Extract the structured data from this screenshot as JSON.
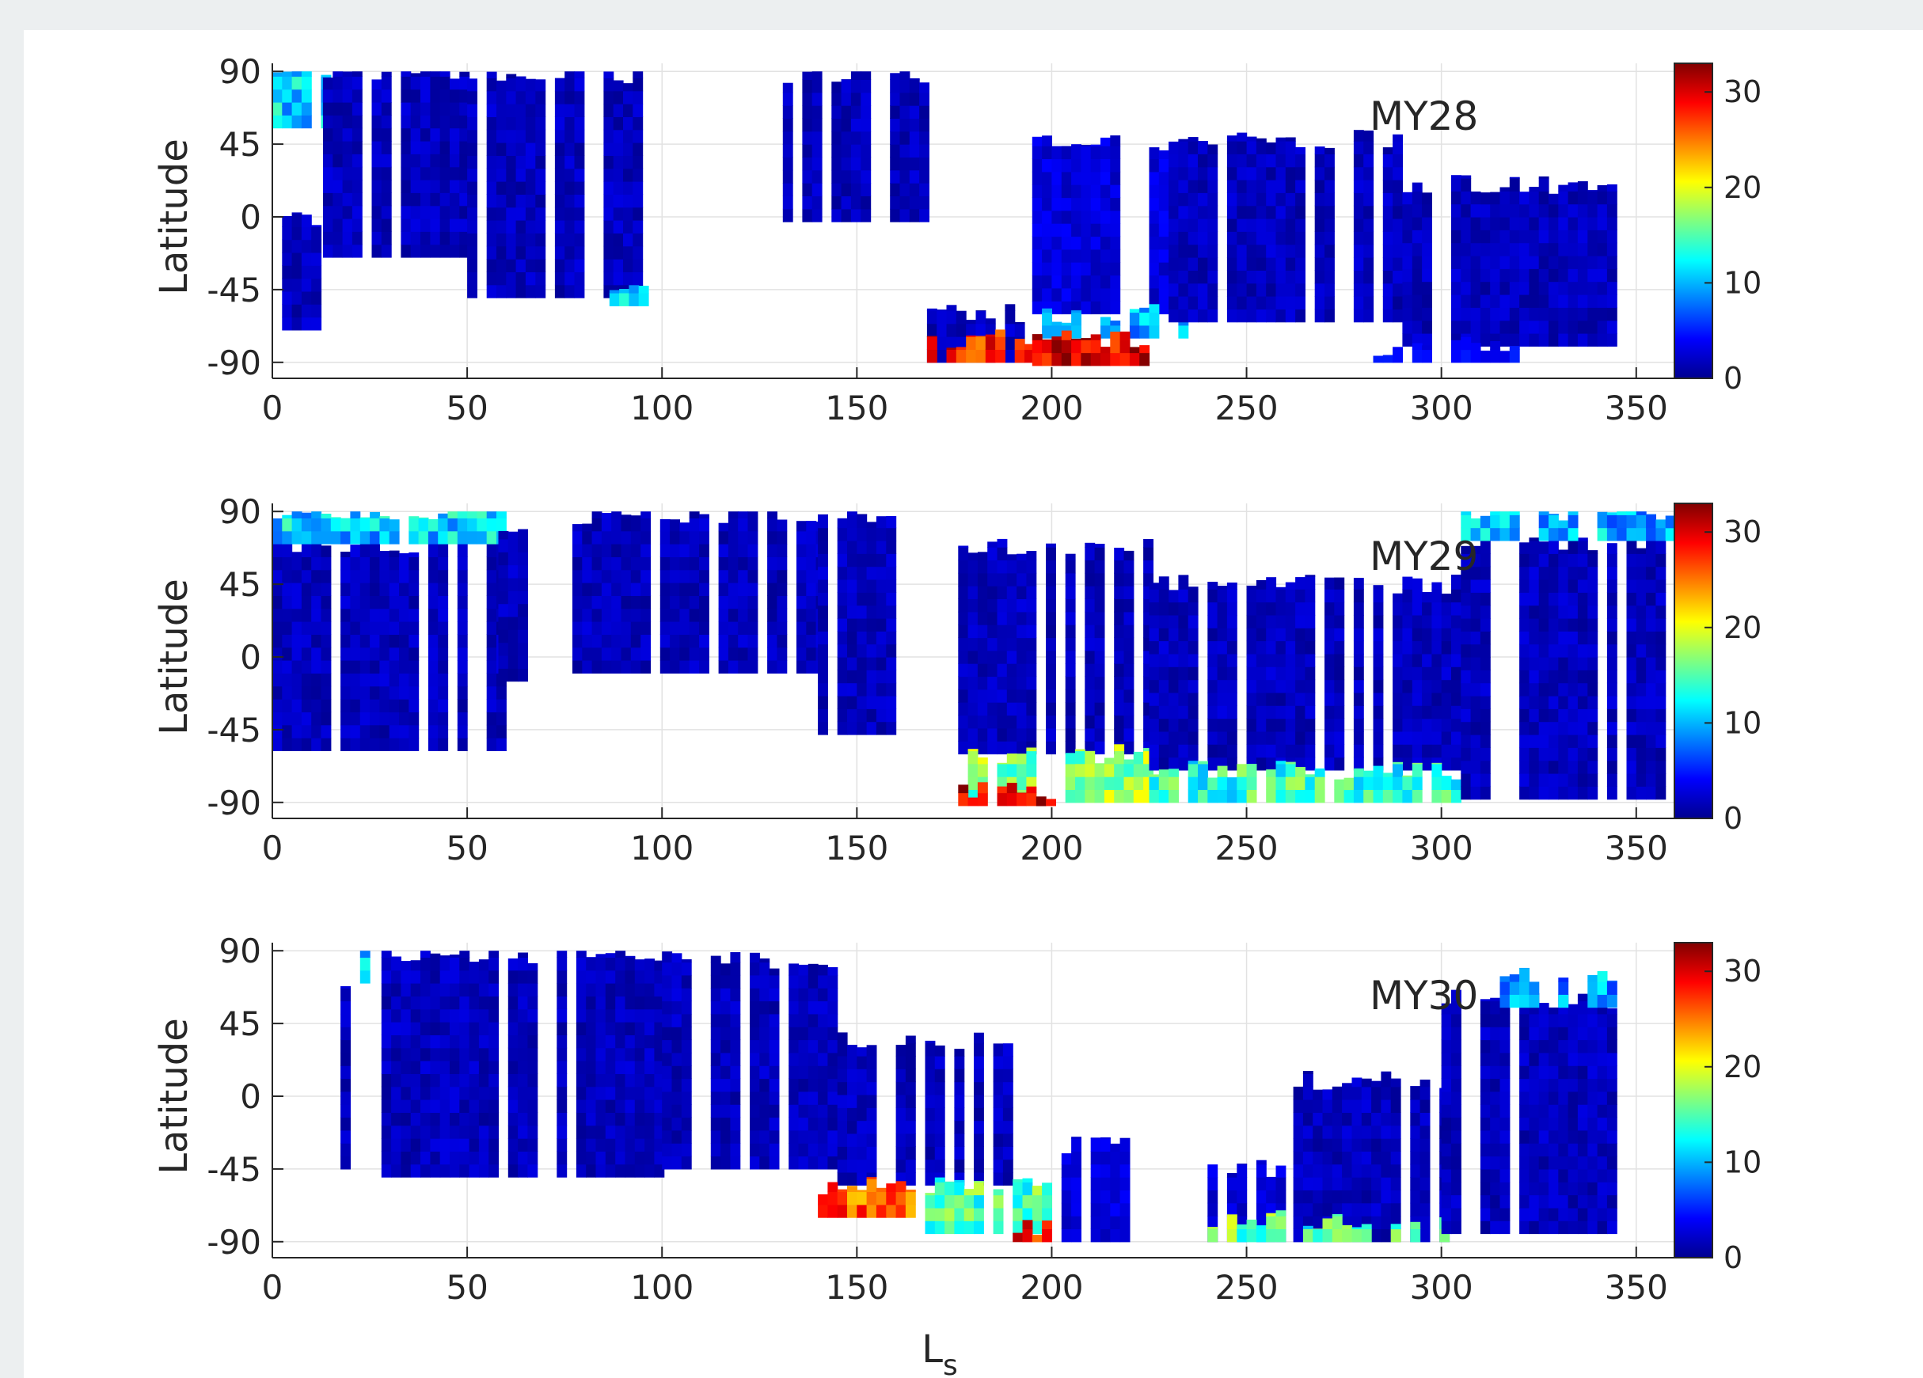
{
  "chart_data": [
    {
      "type": "heatmap",
      "panel_label": "MY28",
      "ylabel": "Latitude",
      "xlabel": "",
      "xlim": [
        0,
        360
      ],
      "ylim": [
        -95,
        95
      ],
      "xticks": [
        "0",
        "50",
        "100",
        "150",
        "200",
        "250",
        "300",
        "350"
      ],
      "yticks": [
        "90",
        "45",
        "0",
        "-45",
        "-90"
      ],
      "xtick_values": [
        0,
        50,
        100,
        150,
        200,
        250,
        300,
        350
      ],
      "ytick_values": [
        90,
        45,
        0,
        -45,
        -90
      ],
      "colorbar": {
        "range": [
          0,
          33
        ],
        "ticks": [
          "0",
          "10",
          "20",
          "30"
        ],
        "tick_values": [
          0,
          10,
          20,
          30
        ],
        "colormap": "jet"
      },
      "grid": true,
      "coverage": [
        {
          "ls": [
            0,
            13
          ],
          "lat": [
            -70,
            0
          ],
          "v": 2
        },
        {
          "ls": [
            0,
            13
          ],
          "lat": [
            55,
            88
          ],
          "v": 11
        },
        {
          "ls": [
            13,
            50
          ],
          "lat": [
            -25,
            88
          ],
          "v": 2
        },
        {
          "ls": [
            50,
            95
          ],
          "lat": [
            -50,
            88
          ],
          "v": 2
        },
        {
          "ls": [
            84,
            95
          ],
          "lat": [
            -55,
            -45
          ],
          "v": 12
        },
        {
          "ls": [
            131,
            168
          ],
          "lat": [
            -3,
            88
          ],
          "v": 2
        },
        {
          "ls": [
            168,
            195
          ],
          "lat": [
            -90,
            -60
          ],
          "v": 2
        },
        {
          "ls": [
            168,
            195
          ],
          "lat": [
            -90,
            -75
          ],
          "v": 28
        },
        {
          "ls": [
            195,
            230
          ],
          "lat": [
            -60,
            45
          ],
          "v": 3
        },
        {
          "ls": [
            195,
            235
          ],
          "lat": [
            -75,
            -60
          ],
          "v": 10
        },
        {
          "ls": [
            195,
            225
          ],
          "lat": [
            -92,
            -75
          ],
          "v": 30
        },
        {
          "ls": [
            230,
            290
          ],
          "lat": [
            -65,
            48
          ],
          "v": 2
        },
        {
          "ls": [
            290,
            345
          ],
          "lat": [
            -80,
            20
          ],
          "v": 2
        },
        {
          "ls": [
            280,
            320
          ],
          "lat": [
            -90,
            -80
          ],
          "v": 4
        }
      ]
    },
    {
      "type": "heatmap",
      "panel_label": "MY29",
      "ylabel": "Latitude",
      "xlabel": "",
      "xlim": [
        0,
        360
      ],
      "ylim": [
        -95,
        95
      ],
      "xticks": [
        "0",
        "50",
        "100",
        "150",
        "200",
        "250",
        "300",
        "350"
      ],
      "yticks": [
        "90",
        "45",
        "0",
        "-45",
        "-90"
      ],
      "xtick_values": [
        0,
        50,
        100,
        150,
        200,
        250,
        300,
        350
      ],
      "ytick_values": [
        90,
        45,
        0,
        -45,
        -90
      ],
      "colorbar": {
        "range": [
          0,
          33
        ],
        "ticks": [
          "0",
          "10",
          "20",
          "30"
        ],
        "tick_values": [
          0,
          10,
          20,
          30
        ],
        "colormap": "jet"
      },
      "grid": true,
      "coverage": [
        {
          "ls": [
            0,
            58
          ],
          "lat": [
            -58,
            70
          ],
          "v": 2
        },
        {
          "ls": [
            0,
            58
          ],
          "lat": [
            70,
            90
          ],
          "v": 11
        },
        {
          "ls": [
            58,
            68
          ],
          "lat": [
            -15,
            75
          ],
          "v": 2
        },
        {
          "ls": [
            77,
            140
          ],
          "lat": [
            -10,
            88
          ],
          "v": 2
        },
        {
          "ls": [
            140,
            160
          ],
          "lat": [
            -48,
            88
          ],
          "v": 2
        },
        {
          "ls": [
            176,
            225
          ],
          "lat": [
            -60,
            68
          ],
          "v": 2
        },
        {
          "ls": [
            176,
            225
          ],
          "lat": [
            -90,
            -60
          ],
          "v": 17
        },
        {
          "ls": [
            176,
            200
          ],
          "lat": [
            -92,
            -82
          ],
          "v": 30
        },
        {
          "ls": [
            225,
            305
          ],
          "lat": [
            -70,
            45
          ],
          "v": 2
        },
        {
          "ls": [
            225,
            305
          ],
          "lat": [
            -90,
            -70
          ],
          "v": 14
        },
        {
          "ls": [
            305,
            360
          ],
          "lat": [
            -88,
            72
          ],
          "v": 2
        },
        {
          "ls": [
            305,
            360
          ],
          "lat": [
            72,
            90
          ],
          "v": 10
        }
      ]
    },
    {
      "type": "heatmap",
      "panel_label": "MY30",
      "ylabel": "Latitude",
      "xlabel": "L_s",
      "xlim": [
        0,
        360
      ],
      "ylim": [
        -95,
        95
      ],
      "xticks": [
        "0",
        "50",
        "100",
        "150",
        "200",
        "250",
        "300",
        "350"
      ],
      "yticks": [
        "90",
        "45",
        "0",
        "-45",
        "-90"
      ],
      "xtick_values": [
        0,
        50,
        100,
        150,
        200,
        250,
        300,
        350
      ],
      "ytick_values": [
        90,
        45,
        0,
        -45,
        -90
      ],
      "colorbar": {
        "range": [
          0,
          33
        ],
        "ticks": [
          "0",
          "10",
          "20",
          "30"
        ],
        "tick_values": [
          0,
          10,
          20,
          30
        ],
        "colormap": "jet"
      },
      "grid": true,
      "coverage": [
        {
          "ls": [
            15,
            22
          ],
          "lat": [
            -45,
            70
          ],
          "v": 2
        },
        {
          "ls": [
            20,
            23
          ],
          "lat": [
            70,
            88
          ],
          "v": 11
        },
        {
          "ls": [
            28,
            100
          ],
          "lat": [
            -50,
            88
          ],
          "v": 2
        },
        {
          "ls": [
            100,
            145
          ],
          "lat": [
            -45,
            85
          ],
          "v": 2
        },
        {
          "ls": [
            145,
            190
          ],
          "lat": [
            -55,
            35
          ],
          "v": 2
        },
        {
          "ls": [
            140,
            165
          ],
          "lat": [
            -75,
            -55
          ],
          "v": 26
        },
        {
          "ls": [
            165,
            200
          ],
          "lat": [
            -85,
            -55
          ],
          "v": 15
        },
        {
          "ls": [
            190,
            200
          ],
          "lat": [
            -90,
            -80
          ],
          "v": 28
        },
        {
          "ls": [
            200,
            220
          ],
          "lat": [
            -90,
            -30
          ],
          "v": 3
        },
        {
          "ls": [
            240,
            260
          ],
          "lat": [
            -90,
            -45
          ],
          "v": 3
        },
        {
          "ls": [
            240,
            260
          ],
          "lat": [
            -90,
            -75
          ],
          "v": 16
        },
        {
          "ls": [
            262,
            300
          ],
          "lat": [
            -90,
            10
          ],
          "v": 2
        },
        {
          "ls": [
            262,
            300
          ],
          "lat": [
            -90,
            -78
          ],
          "v": 14
        },
        {
          "ls": [
            300,
            345
          ],
          "lat": [
            -85,
            60
          ],
          "v": 2
        },
        {
          "ls": [
            315,
            345
          ],
          "lat": [
            55,
            75
          ],
          "v": 9
        }
      ]
    }
  ]
}
